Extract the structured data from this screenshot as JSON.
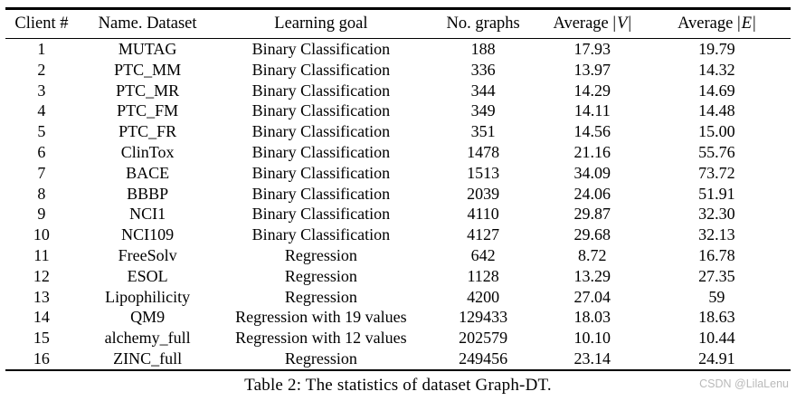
{
  "page": {
    "caption": "Table 2: The statistics of dataset Graph-DT.",
    "watermark": "CSDN @LilaLenu"
  },
  "colors": {
    "text": "#000000",
    "rule": "#000000",
    "watermark_gray": "#b9b9b9",
    "background": "#ffffff"
  },
  "table": {
    "columns": [
      {
        "label": "Client #"
      },
      {
        "label": "Name. Dataset"
      },
      {
        "label": "Learning goal"
      },
      {
        "label": "No. graphs"
      },
      {
        "label": "Average",
        "math_symbol": "V"
      },
      {
        "label": "Average",
        "math_symbol": "E"
      }
    ],
    "column_widths_pct": [
      9.2,
      17.8,
      26.4,
      14.9,
      12.9,
      18.8
    ],
    "rows": [
      [
        "1",
        "MUTAG",
        "Binary Classification",
        "188",
        "17.93",
        "19.79"
      ],
      [
        "2",
        "PTC_MM",
        "Binary Classification",
        "336",
        "13.97",
        "14.32"
      ],
      [
        "3",
        "PTC_MR",
        "Binary Classification",
        "344",
        "14.29",
        "14.69"
      ],
      [
        "4",
        "PTC_FM",
        "Binary Classification",
        "349",
        "14.11",
        "14.48"
      ],
      [
        "5",
        "PTC_FR",
        "Binary Classification",
        "351",
        "14.56",
        "15.00"
      ],
      [
        "6",
        "ClinTox",
        "Binary Classification",
        "1478",
        "21.16",
        "55.76"
      ],
      [
        "7",
        "BACE",
        "Binary Classification",
        "1513",
        "34.09",
        "73.72"
      ],
      [
        "8",
        "BBBP",
        "Binary Classification",
        "2039",
        "24.06",
        "51.91"
      ],
      [
        "9",
        "NCI1",
        "Binary Classification",
        "4110",
        "29.87",
        "32.30"
      ],
      [
        "10",
        "NCI109",
        "Binary Classification",
        "4127",
        "29.68",
        "32.13"
      ],
      [
        "11",
        "FreeSolv",
        "Regression",
        "642",
        "8.72",
        "16.78"
      ],
      [
        "12",
        "ESOL",
        "Regression",
        "1128",
        "13.29",
        "27.35"
      ],
      [
        "13",
        "Lipophilicity",
        "Regression",
        "4200",
        "27.04",
        "59"
      ],
      [
        "14",
        "QM9",
        "Regression with 19 values",
        "129433",
        "18.03",
        "18.63"
      ],
      [
        "15",
        "alchemy_full",
        "Regression with 12 values",
        "202579",
        "10.10",
        "10.44"
      ],
      [
        "16",
        "ZINC_full",
        "Regression",
        "249456",
        "23.14",
        "24.91"
      ]
    ]
  }
}
